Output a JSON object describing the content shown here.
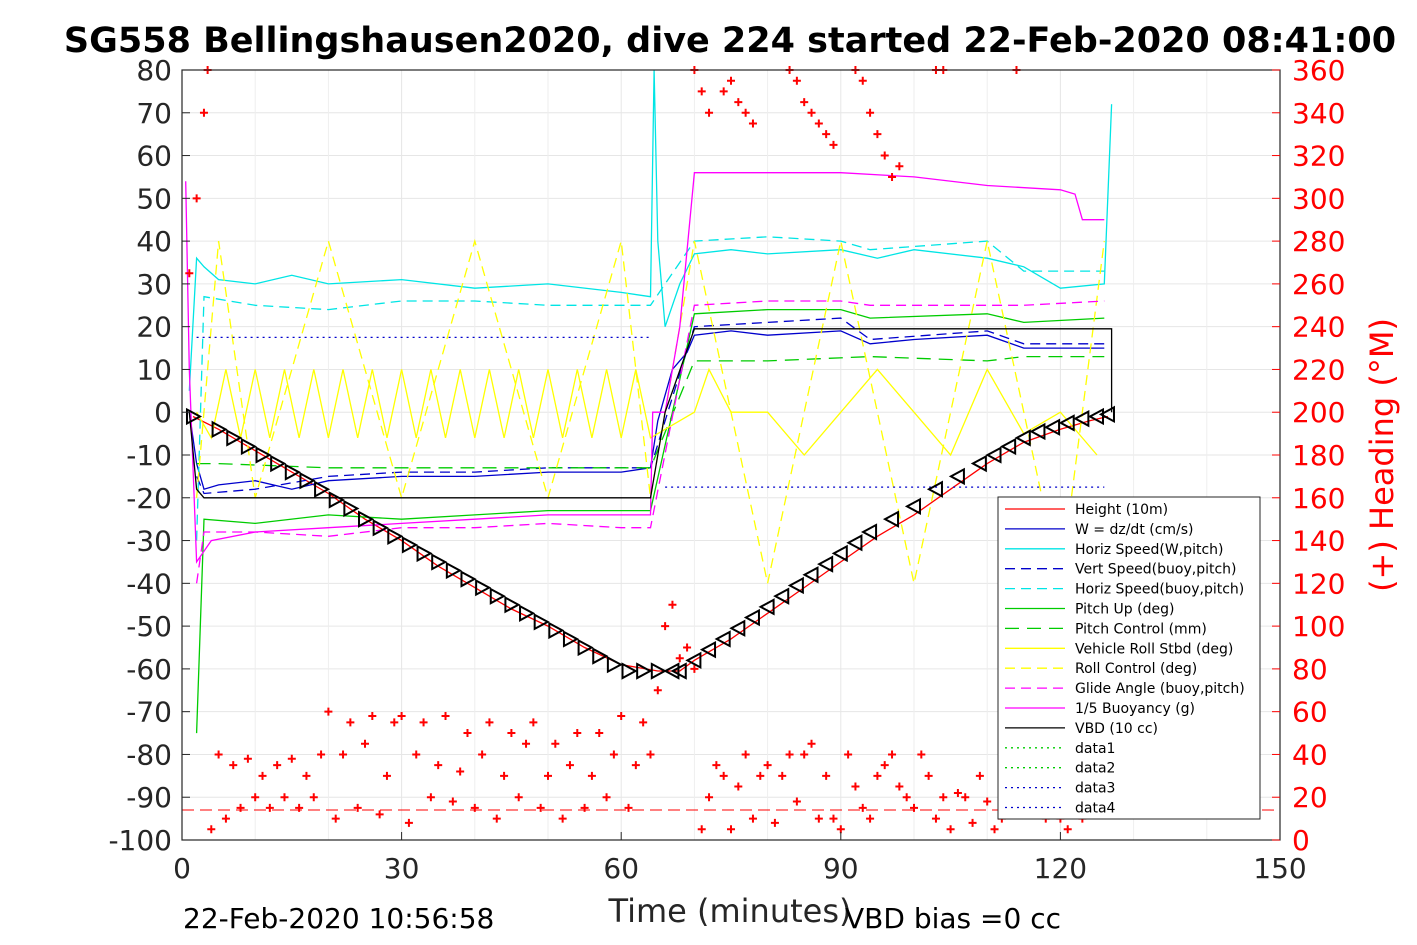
{
  "chart_data": {
    "type": "line",
    "title": "SG558 Bellingshausen2020, dive 224 started 22-Feb-2020 08:41:00",
    "xlabel": "Time (minutes)",
    "ylabel_right": "(+) Heading (°M)",
    "xlim": [
      0,
      150
    ],
    "ylim": [
      -100,
      80
    ],
    "ylim_right": [
      0,
      360
    ],
    "xticks": [
      0,
      30,
      60,
      90,
      120,
      150
    ],
    "yticks": [
      80,
      70,
      60,
      50,
      40,
      30,
      20,
      10,
      0,
      -10,
      -20,
      -30,
      -40,
      -50,
      -60,
      -70,
      -80,
      -90,
      -100
    ],
    "yticks_right": [
      360,
      340,
      320,
      300,
      280,
      260,
      240,
      220,
      200,
      180,
      160,
      140,
      120,
      100,
      80,
      60,
      40,
      20,
      0
    ],
    "grid": true,
    "legend_position": "bottom-right",
    "footer_left": "22-Feb-2020 10:56:58",
    "footer_right": "VBD bias =0 cc",
    "series": [
      {
        "name": "Height (10m)",
        "color": "#ff0000",
        "dash": "",
        "x": [
          1.5,
          5,
          10,
          15,
          20,
          25,
          30,
          35,
          40,
          45,
          50,
          55,
          60,
          65,
          68,
          70,
          75,
          80,
          85,
          90,
          95,
          100,
          105,
          110,
          115,
          120,
          124,
          126.5
        ],
        "y": [
          -1,
          -4,
          -9,
          -14,
          -19,
          -25,
          -30,
          -36,
          -41,
          -46,
          -50,
          -55,
          -59,
          -60.5,
          -60.5,
          -58,
          -53,
          -47,
          -41,
          -35,
          -29,
          -24,
          -18,
          -12,
          -7,
          -4,
          -2,
          -1
        ]
      },
      {
        "name": "W = dz/dt (cm/s)",
        "color": "#0000cc",
        "dash": "",
        "x": [
          1,
          2,
          3,
          5,
          10,
          15,
          20,
          30,
          40,
          50,
          60,
          64,
          65,
          67,
          69,
          70,
          75,
          80,
          90,
          94,
          100,
          110,
          115,
          120,
          126
        ],
        "y": [
          0,
          -12,
          -18,
          -17,
          -16,
          -18,
          -16,
          -15,
          -15,
          -14,
          -14,
          -13,
          -2,
          10,
          14,
          18,
          19,
          18,
          19,
          16,
          17,
          18,
          15,
          15,
          15
        ]
      },
      {
        "name": "Horiz Speed(W,pitch)",
        "color": "#00e5e5",
        "dash": "",
        "x": [
          1,
          2,
          3,
          5,
          10,
          15,
          20,
          30,
          40,
          50,
          60,
          64,
          64.5,
          65,
          66,
          68,
          70,
          75,
          80,
          90,
          95,
          100,
          110,
          115,
          120,
          126,
          127
        ],
        "y": [
          5,
          36,
          34,
          31,
          30,
          32,
          30,
          31,
          29,
          30,
          28,
          27,
          80,
          40,
          20,
          30,
          37,
          38,
          37,
          38,
          36,
          38,
          36,
          34,
          29,
          30,
          72
        ]
      },
      {
        "name": "Vert Speed(buoy,pitch)",
        "color": "#0000cc",
        "dash": "10,6",
        "x": [
          2,
          3,
          10,
          20,
          30,
          40,
          50,
          60,
          64,
          70,
          80,
          90,
          94,
          110,
          115,
          126
        ],
        "y": [
          -15,
          -19,
          -18,
          -15,
          -14,
          -14,
          -13,
          -13,
          -13,
          20,
          21,
          22,
          17,
          19,
          16,
          16
        ]
      },
      {
        "name": "Horiz Speed(buoy,pitch)",
        "color": "#00e5e5",
        "dash": "10,6",
        "x": [
          2,
          3,
          10,
          20,
          30,
          40,
          50,
          60,
          64,
          70,
          80,
          90,
          94,
          110,
          115,
          126
        ],
        "y": [
          -30,
          27,
          25,
          24,
          26,
          26,
          25,
          25,
          25,
          40,
          41,
          40,
          38,
          40,
          33,
          33
        ]
      },
      {
        "name": "Pitch Up (deg)",
        "color": "#00cc00",
        "dash": "",
        "x": [
          2,
          3,
          10,
          20,
          30,
          40,
          50,
          60,
          64,
          70,
          80,
          90,
          94,
          110,
          115,
          126
        ],
        "y": [
          -75,
          -25,
          -26,
          -24,
          -25,
          -24,
          -23,
          -23,
          -23,
          23,
          24,
          24,
          22,
          23,
          21,
          22
        ]
      },
      {
        "name": "Pitch Control (mm)",
        "color": "#00cc00",
        "dash": "14,8",
        "x": [
          2,
          5,
          20,
          60,
          64,
          70,
          80,
          94,
          110,
          115,
          126
        ],
        "y": [
          -12,
          -12,
          -13,
          -13,
          -13,
          12,
          12,
          13,
          12,
          13,
          13
        ]
      },
      {
        "name": "Vehicle Roll Stbd (deg)",
        "color": "#ffff00",
        "dash": "",
        "x": [
          2,
          4,
          6,
          8,
          10,
          12,
          14,
          16,
          18,
          20,
          22,
          24,
          26,
          28,
          30,
          32,
          34,
          36,
          38,
          40,
          42,
          44,
          46,
          48,
          50,
          52,
          54,
          56,
          58,
          60,
          62,
          64,
          66,
          70,
          72,
          75,
          80,
          85,
          90,
          95,
          100,
          105,
          110,
          115,
          120,
          125
        ],
        "y": [
          0,
          -6,
          10,
          -6,
          10,
          -6,
          10,
          -6,
          10,
          -6,
          10,
          -6,
          10,
          -6,
          10,
          -6,
          10,
          -6,
          10,
          -6,
          10,
          -6,
          10,
          -6,
          10,
          -6,
          10,
          -6,
          10,
          -6,
          10,
          -6,
          -4,
          0,
          10,
          0,
          0,
          -10,
          0,
          10,
          0,
          -10,
          10,
          -5,
          0,
          -10
        ]
      },
      {
        "name": "Roll Control (deg)",
        "color": "#ffff00",
        "dash": "10,6",
        "x": [
          2,
          5,
          10,
          20,
          30,
          40,
          50,
          60,
          64,
          70,
          80,
          90,
          100,
          110,
          120,
          126
        ],
        "y": [
          -20,
          40,
          -20,
          40,
          -20,
          40,
          -20,
          40,
          -20,
          40,
          -40,
          40,
          -40,
          40,
          -40,
          40
        ]
      },
      {
        "name": "Glide Angle (buoy,pitch)",
        "color": "#ff00ff",
        "dash": "10,6",
        "x": [
          2,
          3,
          10,
          20,
          30,
          40,
          50,
          60,
          64,
          70,
          80,
          90,
          94,
          110,
          115,
          126
        ],
        "y": [
          -40,
          -28,
          -28,
          -29,
          -27,
          -27,
          -26,
          -27,
          -27,
          25,
          26,
          26,
          25,
          25,
          25,
          26
        ]
      },
      {
        "name": "1/5 Buoyancy (g)",
        "color": "#ff00ff",
        "dash": "",
        "x": [
          0.5,
          1,
          2,
          4,
          10,
          20,
          30,
          40,
          50,
          60,
          64,
          64.3,
          66,
          68,
          70,
          80,
          90,
          100,
          110,
          120,
          122,
          123,
          126
        ],
        "y": [
          54,
          10,
          -35,
          -30,
          -28,
          -27,
          -26,
          -25,
          -24,
          -24,
          -24,
          0,
          0,
          20,
          56,
          56,
          56,
          55,
          53,
          52,
          51,
          45,
          45
        ]
      },
      {
        "name": "VBD (10 cc)",
        "color": "#000000",
        "dash": "",
        "x": [
          1,
          2,
          3,
          64,
          66,
          70,
          127,
          127
        ],
        "y": [
          0,
          -18,
          -20,
          -20,
          0,
          19.5,
          19.5,
          0
        ]
      },
      {
        "name": "data1",
        "color": "#00cc00",
        "dash": "2,4",
        "x": [],
        "y": []
      },
      {
        "name": "data2",
        "color": "#00cc00",
        "dash": "2,4",
        "x": [],
        "y": []
      },
      {
        "name": "data3",
        "color": "#0000cc",
        "dash": "2,4",
        "x": [
          2,
          64
        ],
        "y": [
          17.5,
          17.5
        ]
      },
      {
        "name": "data4",
        "color": "#0000cc",
        "dash": "2,4",
        "x": [
          66,
          126
        ],
        "y": [
          -17.5,
          -17.5
        ]
      }
    ],
    "heading_series": {
      "name": "(+) Heading",
      "color": "#ff0000",
      "marker": "+",
      "x": [
        1,
        2,
        3,
        3.5,
        4,
        5,
        6,
        7,
        8,
        9,
        10,
        11,
        12,
        13,
        14,
        15,
        16,
        17,
        18,
        19,
        20,
        21,
        22,
        23,
        24,
        25,
        26,
        27,
        28,
        29,
        30,
        31,
        32,
        33,
        34,
        35,
        36,
        37,
        38,
        39,
        40,
        41,
        42,
        43,
        44,
        45,
        46,
        47,
        48,
        49,
        50,
        51,
        52,
        53,
        54,
        55,
        56,
        57,
        58,
        59,
        60,
        61,
        62,
        63,
        64,
        65,
        66,
        67,
        68,
        69,
        70,
        71,
        72,
        73,
        74,
        75,
        76,
        77,
        78,
        79,
        80,
        81,
        82,
        83,
        84,
        85,
        86,
        87,
        88,
        89,
        90,
        91,
        92,
        93,
        94,
        95,
        96,
        97,
        98,
        99,
        100,
        101,
        102,
        103,
        104,
        105,
        106,
        107,
        108,
        109,
        110,
        111,
        112,
        113,
        114,
        115,
        116,
        117,
        118,
        119,
        120,
        121,
        122,
        123,
        124,
        125
      ],
      "y": [
        265,
        300,
        340,
        360,
        5,
        40,
        10,
        35,
        15,
        38,
        20,
        30,
        15,
        35,
        20,
        38,
        15,
        30,
        20,
        40,
        60,
        10,
        40,
        55,
        15,
        45,
        58,
        12,
        30,
        55,
        58,
        8,
        40,
        55,
        20,
        35,
        58,
        18,
        32,
        50,
        15,
        40,
        55,
        10,
        30,
        50,
        20,
        45,
        55,
        15,
        30,
        45,
        10,
        35,
        50,
        15,
        30,
        50,
        20,
        40,
        58,
        15,
        35,
        55,
        40,
        70,
        100,
        110,
        85,
        90,
        80,
        5,
        20,
        35,
        30,
        5,
        25,
        40,
        10,
        30,
        35,
        8,
        30,
        40,
        18,
        40,
        45,
        10,
        30,
        10,
        5,
        40,
        25,
        15,
        10,
        30,
        35,
        40,
        25,
        20,
        15,
        40,
        30,
        10,
        20,
        5,
        22,
        20,
        8,
        30,
        18,
        5,
        10,
        15,
        30,
        20,
        15,
        20,
        10,
        15,
        10,
        5,
        12,
        10,
        15,
        20
      ],
      "x_top": [
        70,
        71,
        72,
        74,
        75,
        76,
        77,
        78,
        83,
        84,
        85,
        86,
        87,
        88,
        89,
        92,
        93,
        94,
        95,
        96,
        97,
        98,
        103,
        104,
        114
      ],
      "y_top": [
        360,
        350,
        340,
        350,
        355,
        345,
        340,
        335,
        360,
        355,
        345,
        340,
        335,
        330,
        325,
        360,
        355,
        340,
        330,
        320,
        310,
        315,
        360,
        360,
        360
      ]
    },
    "markers": {
      "name": "Height triangles",
      "color": "#000000",
      "x": [
        1.5,
        5,
        7,
        9,
        11,
        13,
        15,
        17,
        19,
        21,
        23,
        25,
        27,
        29,
        31,
        33,
        35,
        37,
        39,
        41,
        43,
        45,
        47,
        49,
        51,
        53,
        55,
        57,
        59,
        61,
        63,
        65,
        67,
        68,
        70,
        72,
        74,
        76,
        78,
        80,
        82,
        84,
        86,
        88,
        90,
        92,
        94,
        97,
        100,
        103,
        106,
        109,
        111,
        113,
        115,
        117,
        119,
        121,
        123,
        125,
        126.5
      ],
      "y": [
        -1,
        -4,
        -6,
        -8,
        -10,
        -12,
        -14,
        -16,
        -18,
        -20.5,
        -22.5,
        -25,
        -27,
        -29,
        -31,
        -33,
        -35,
        -37,
        -39,
        -41,
        -43,
        -45,
        -47,
        -49,
        -51,
        -53,
        -55,
        -57,
        -59,
        -60.5,
        -60.5,
        -60.5,
        -60.5,
        -60.5,
        -58,
        -55.5,
        -53,
        -50.5,
        -48,
        -45.5,
        -43,
        -40.5,
        -38,
        -35.5,
        -33,
        -30.5,
        -28,
        -25,
        -22,
        -18,
        -15,
        -12,
        -10,
        -8,
        -6,
        -4.5,
        -3.5,
        -2.5,
        -1.5,
        -1,
        -0.5
      ]
    },
    "ref_line": {
      "name": "bottom reference",
      "color": "#ff0000",
      "dash": "12,6",
      "y": -93
    }
  }
}
